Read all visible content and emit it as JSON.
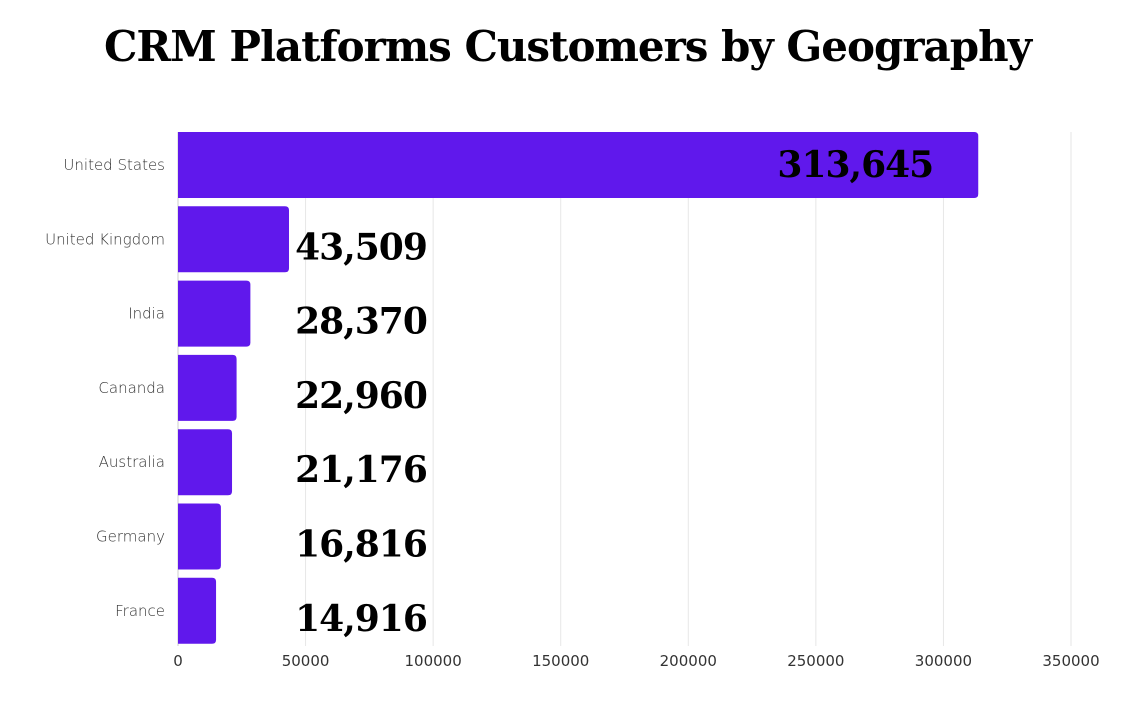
{
  "chart_data": {
    "type": "bar",
    "orientation": "horizontal",
    "title": "CRM Platforms Customers by Geography",
    "xlabel": "",
    "ylabel": "",
    "categories": [
      "United States",
      "United Kingdom",
      "India",
      "Cananda",
      "Australia",
      "Germany",
      "France"
    ],
    "values": [
      313645,
      43509,
      28370,
      22960,
      21176,
      16816,
      14916
    ],
    "data_labels": [
      "313,645",
      "43,509",
      "28,370",
      "22,960",
      "21,176",
      "16,816",
      "14,916"
    ],
    "xlim": [
      0,
      350000
    ],
    "x_ticks": [
      "0",
      "50000",
      "100000",
      "150000",
      "200000",
      "250000",
      "300000",
      "350000"
    ],
    "grid": "vertical",
    "legend": "none",
    "colors": {
      "bar": "#6018EC",
      "grid": "#E6E6E6"
    }
  }
}
